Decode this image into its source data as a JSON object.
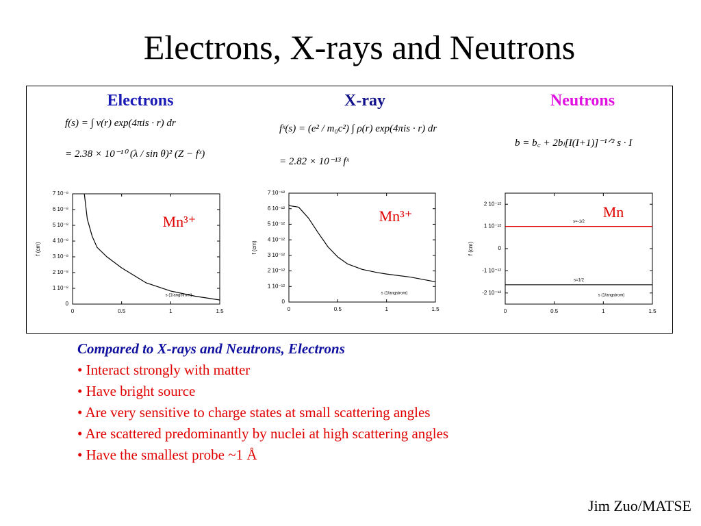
{
  "title": "Electrons, X-rays and Neutrons",
  "panels": [
    {
      "heading": "Electrons",
      "formulas": [
        "f(s) = ∫ v(r) exp(4πis · r) dr",
        "= 2.38 × 10⁻¹⁰ (λ / sin θ)² (Z − fˣ)"
      ]
    },
    {
      "heading": "X-ray",
      "formulas": [
        "fˣ(s) = (e² / m₀c²) ∫ ρ(r) exp(4πis · r) dr",
        "= 2.82 × 10⁻¹³ fˣ"
      ]
    },
    {
      "heading": "Neutrons",
      "formulas": [
        "b = b꜀ + 2bₗ[I(I+1)]⁻¹ᐟ² s · I"
      ]
    }
  ],
  "chart_data": [
    {
      "type": "line",
      "ylabel": "f (cm)",
      "xlabel": "s (1/angstrom)",
      "annotation": "Mn³⁺",
      "x": [
        0.12,
        0.15,
        0.2,
        0.25,
        0.35,
        0.5,
        0.75,
        1,
        1.25,
        1.5
      ],
      "series": [
        {
          "color": "#000000",
          "values": [
            7e-08,
            5.4e-08,
            4.3e-08,
            3.6e-08,
            3e-08,
            2.3e-08,
            1.35e-08,
            8.3e-09,
            5e-09,
            2.6e-09
          ]
        }
      ],
      "xlim": [
        0,
        1.5
      ],
      "xticks": [
        0,
        0.5,
        1,
        1.5
      ],
      "ylim": [
        0,
        7e-08
      ],
      "yticks": [
        0,
        {
          "value": 1e-08,
          "label": "1 10⁻⁸"
        },
        {
          "value": 2e-08,
          "label": "2 10⁻⁸"
        },
        {
          "value": 3e-08,
          "label": "3 10⁻⁸"
        },
        {
          "value": 4e-08,
          "label": "4 10⁻⁸"
        },
        {
          "value": 5e-08,
          "label": "5 10⁻⁸"
        },
        {
          "value": 6e-08,
          "label": "6 10⁻⁸"
        },
        {
          "value": 7e-08,
          "label": "7 10⁻⁸"
        }
      ]
    },
    {
      "type": "line",
      "ylabel": "f (cm)",
      "xlabel": "s (1/angstrom)",
      "annotation": "Mn³⁺",
      "x": [
        0,
        0.1,
        0.2,
        0.3,
        0.4,
        0.5,
        0.6,
        0.75,
        0.9,
        1,
        1.25,
        1.5
      ],
      "series": [
        {
          "color": "#000000",
          "values": [
            6.2e-12,
            6.1e-12,
            5.4e-12,
            4.45e-12,
            3.55e-12,
            2.9e-12,
            2.45e-12,
            2.1e-12,
            1.9e-12,
            1.8e-12,
            1.6e-12,
            1.3e-12
          ]
        }
      ],
      "xlim": [
        0,
        1.5
      ],
      "xticks": [
        0,
        0.5,
        1,
        1.5
      ],
      "ylim": [
        0,
        7e-12
      ],
      "yticks": [
        0,
        {
          "value": 1e-12,
          "label": "1 10⁻¹²"
        },
        {
          "value": 2e-12,
          "label": "2 10⁻¹²"
        },
        {
          "value": 3e-12,
          "label": "3 10⁻¹²"
        },
        {
          "value": 4e-12,
          "label": "4 10⁻¹²"
        },
        {
          "value": 5e-12,
          "label": "5 10⁻¹²"
        },
        {
          "value": 6e-12,
          "label": "6 10⁻¹²"
        },
        {
          "value": 7e-12,
          "label": "7 10⁻¹²"
        }
      ]
    },
    {
      "type": "line",
      "ylabel": "f (cm)",
      "xlabel": "s (1/angstrom)",
      "annotation": "Mn",
      "x": [
        0,
        1.5
      ],
      "series": [
        {
          "name": "s=-1/2",
          "color": "#e00000",
          "values": [
            1e-12,
            1e-12
          ]
        },
        {
          "name": "s=1/2",
          "color": "#000000",
          "values": [
            -1.63e-12,
            -1.63e-12
          ]
        }
      ],
      "xlim": [
        0,
        1.5
      ],
      "xticks": [
        0,
        0.5,
        1,
        1.5
      ],
      "ylim": [
        -2.5e-12,
        2.5e-12
      ],
      "yticks": [
        {
          "value": -2e-12,
          "label": "-2 10⁻¹²"
        },
        {
          "value": -1e-12,
          "label": "-1 10⁻¹²"
        },
        0,
        {
          "value": 1e-12,
          "label": "1 10⁻¹²"
        },
        {
          "value": 2e-12,
          "label": "2 10⁻¹²"
        }
      ]
    }
  ],
  "notes": {
    "heading": "Compared to X-rays and Neutrons, Electrons",
    "bullets": [
      "• Interact strongly with matter",
      "• Have bright source",
      "• Are very sensitive to charge states at small scattering angles",
      "• Are scattered predominantly by nuclei at high scattering angles",
      "• Have the smallest probe ~1 Å"
    ]
  },
  "footer": "Jim Zuo/MATSE"
}
